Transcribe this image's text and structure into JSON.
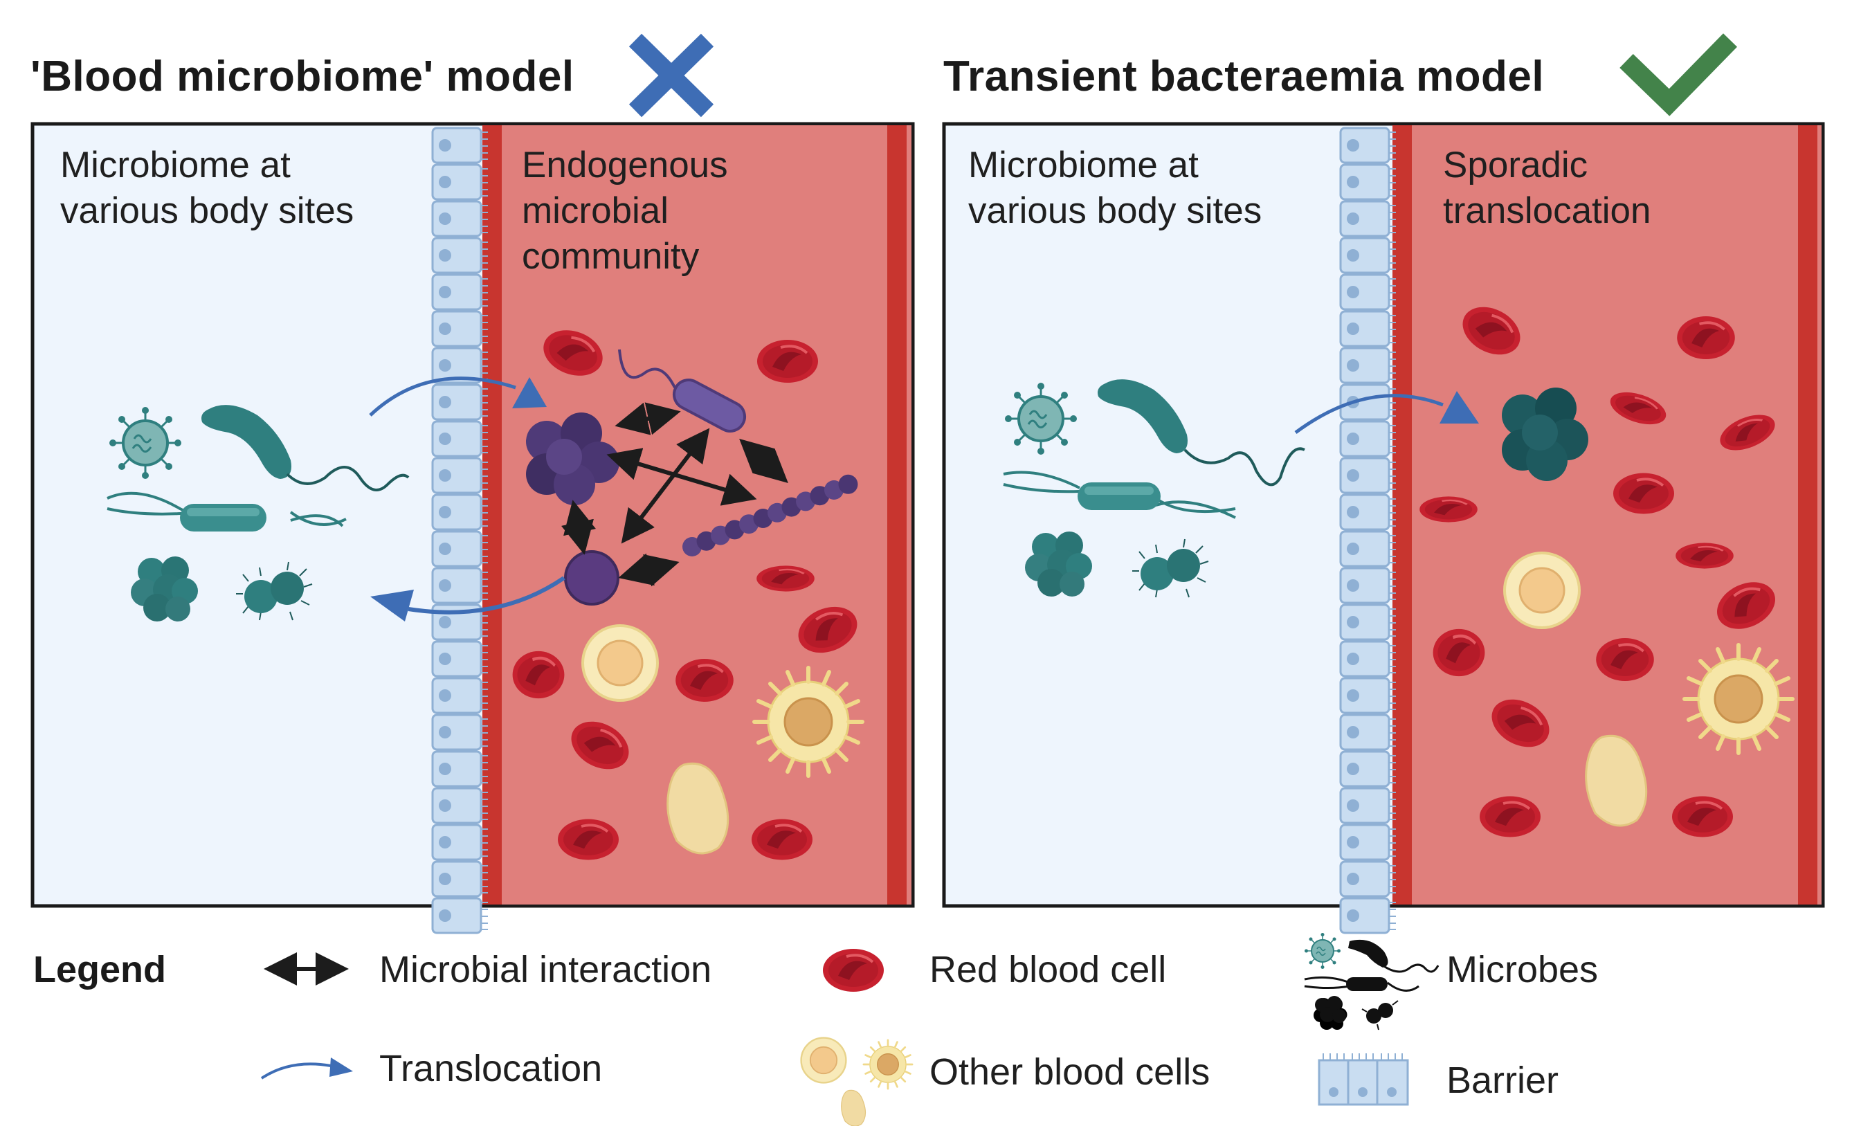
{
  "left_panel": {
    "title": "'Blood microbiome' model",
    "verdict_icon": "cross-icon",
    "verdict_color": "#3e6db5",
    "tissue_label": "Microbiome at\nvarious body sites",
    "blood_label": "Endogenous\nmicrobial\ncommunity"
  },
  "right_panel": {
    "title": "Transient bacteraemia model",
    "verdict_icon": "check-icon",
    "verdict_color": "#43834a",
    "tissue_label": "Microbiome at\nvarious body sites",
    "blood_label": "Sporadic\ntranslocation"
  },
  "legend": {
    "title": "Legend",
    "items": [
      {
        "icon": "double-arrow-icon",
        "label": "Microbial interaction"
      },
      {
        "icon": "curved-arrow-icon",
        "label": "Translocation"
      },
      {
        "icon": "red-blood-cell-icon",
        "label": "Red blood cell"
      },
      {
        "icon": "blood-cells-icon",
        "label": "Other blood cells"
      },
      {
        "icon": "microbes-icon",
        "label": "Microbes"
      },
      {
        "icon": "barrier-icon",
        "label": "Barrier"
      }
    ]
  },
  "colors": {
    "tissue_bg": "#eef5fd",
    "blood_bg": "#e07f7c",
    "vessel_wall": "#c8352f",
    "microbe_teal": "#2f7f7f",
    "microbe_purple": "#4f3a78",
    "rbc": "#c7212f",
    "arrow_blue": "#3e6db5"
  }
}
